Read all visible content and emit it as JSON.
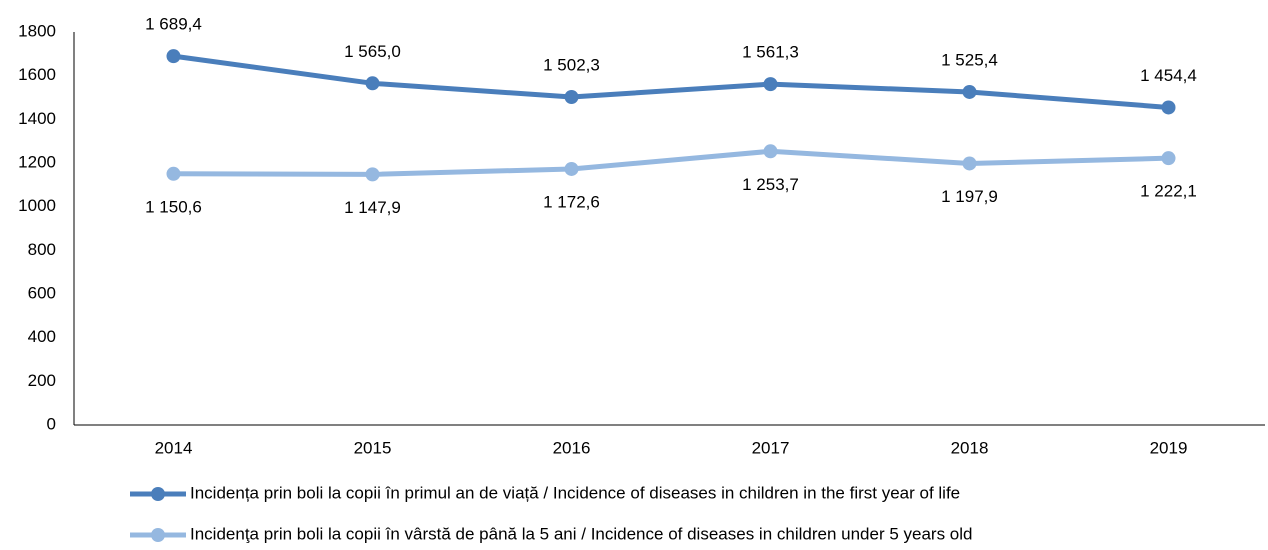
{
  "chart_data": {
    "type": "line",
    "categories": [
      "2014",
      "2015",
      "2016",
      "2017",
      "2018",
      "2019"
    ],
    "series": [
      {
        "name": "Incidența prin boli la copii în primul an de viață / Incidence of diseases in children in the first year of life",
        "color": "#4a7ebb",
        "values": [
          1689.4,
          1565.0,
          1502.3,
          1561.3,
          1525.4,
          1454.4
        ],
        "value_labels": [
          "1 689,4",
          "1 565,0",
          "1 502,3",
          "1 561,3",
          "1 525,4",
          "1 454,4"
        ]
      },
      {
        "name": "Incidenţa prin boli la copii în vârstă de până la 5 ani / Incidence of diseases in children under 5 years old",
        "color": "#95b8e0",
        "values": [
          1150.6,
          1147.9,
          1172.6,
          1253.7,
          1197.9,
          1222.1
        ],
        "value_labels": [
          "1 150,6",
          "1 147,9",
          "1 172,6",
          "1 253,7",
          "1 197,9",
          "1 222,1"
        ]
      }
    ],
    "ylim": [
      0,
      1800
    ],
    "yticks": [
      0,
      200,
      400,
      600,
      800,
      1000,
      1200,
      1400,
      1600,
      1800
    ],
    "grid": false,
    "legend": "bottom"
  }
}
